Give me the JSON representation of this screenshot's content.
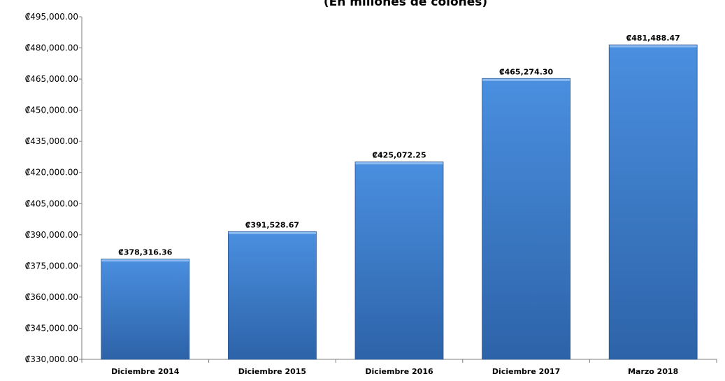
{
  "chart_data": {
    "type": "bar",
    "title": "(En millones de colones)",
    "categories": [
      "Diciembre 2014",
      "Diciembre 2015",
      "Diciembre 2016",
      "Diciembre 2017",
      "Marzo 2018"
    ],
    "values": [
      378316.36,
      391528.67,
      425072.25,
      465274.3,
      481488.47
    ],
    "data_labels": [
      "₡378,316.36",
      "₡391,528.67",
      "₡425,072.25",
      "₡465,274.30",
      "₡481,488.47"
    ],
    "ylim": [
      330000,
      495000
    ],
    "yticks": [
      330000,
      345000,
      360000,
      375000,
      390000,
      405000,
      420000,
      435000,
      450000,
      465000,
      480000,
      495000
    ],
    "ytick_labels": [
      "₡330,000.00",
      "₡345,000.00",
      "₡360,000.00",
      "₡375,000.00",
      "₡390,000.00",
      "₡405,000.00",
      "₡420,000.00",
      "₡435,000.00",
      "₡450,000.00",
      "₡465,000.00",
      "₡480,000.00",
      "₡495,000.00"
    ],
    "grid": false,
    "bar_color": "#3d7fd3",
    "bar_color_dark": "#2a5f9e"
  }
}
